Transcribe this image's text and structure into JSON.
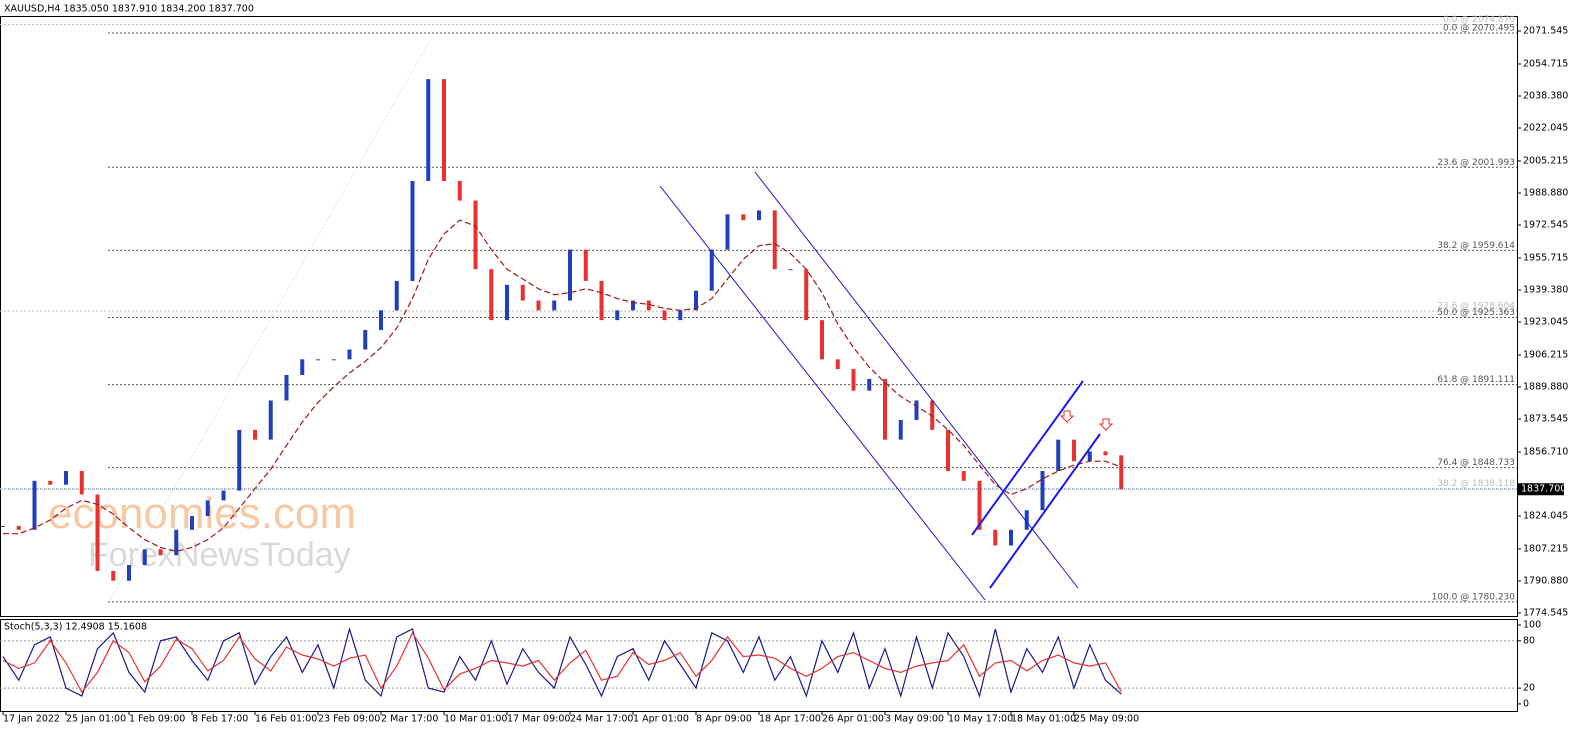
{
  "chart_data": [
    {
      "type": "line",
      "title": "XAUUSD,H4  1835.050 1837.910 1834.200 1837.700",
      "watermark": [
        "economies.com",
        "ForexNewsToday"
      ],
      "categories": [
        "17 Jan 2022",
        null,
        null,
        null,
        "25 Jan 01:00",
        null,
        null,
        null,
        "1 Feb 09:00",
        null,
        null,
        null,
        "8 Feb 17:00",
        null,
        null,
        null,
        "16 Feb 01:00",
        null,
        null,
        null,
        "23 Feb 09:00",
        null,
        null,
        null,
        "2 Mar 17:00",
        null,
        null,
        null,
        "10 Mar 01:00",
        null,
        null,
        null,
        "17 Mar 09:00",
        null,
        null,
        null,
        "24 Mar 17:00",
        null,
        null,
        null,
        "1 Apr 01:00",
        null,
        null,
        null,
        "8 Apr 09:00",
        null,
        null,
        null,
        "18 Apr 17:00",
        null,
        null,
        null,
        "26 Apr 01:00",
        null,
        null,
        null,
        "3 May 09:00",
        null,
        null,
        null,
        "10 May 17:00",
        null,
        null,
        null,
        "18 May 01:00",
        null,
        null,
        null,
        "25 May 09:00",
        null,
        null,
        null
      ],
      "series": [
        {
          "color": "#1f3fbf",
          "down_color": "#e8312f",
          "values": [
            1819,
            1817,
            1842,
            1840,
            1847,
            1835,
            1796,
            1791,
            1799,
            1807,
            1804,
            1817,
            1824,
            1832,
            1837,
            1868,
            1863,
            1883,
            1896,
            1904,
            1904,
            1904,
            1909,
            1919,
            1929,
            1944,
            1995,
            2047,
            1995,
            1985,
            1950,
            1924,
            1942,
            1934,
            1929,
            1934,
            1960,
            1944,
            1924,
            1929,
            1934,
            1929,
            1924,
            1929,
            1939,
            1960,
            1978,
            1975,
            1980,
            1950,
            1950,
            1924,
            1904,
            1899,
            1888,
            1894,
            1863,
            1873,
            1883,
            1868,
            1847,
            1842,
            1817,
            1809,
            1817,
            1827,
            1847,
            1863,
            1852,
            1857,
            1855,
            1837.7
          ]
        },
        {
          "color": "#a01818",
          "dashed": true,
          "values": [
            1815,
            1815,
            1818,
            1822,
            1828,
            1832,
            1830,
            1825,
            1818,
            1812,
            1808,
            1806,
            1808,
            1812,
            1818,
            1828,
            1838,
            1848,
            1860,
            1872,
            1882,
            1890,
            1897,
            1903,
            1910,
            1920,
            1935,
            1955,
            1968,
            1975,
            1972,
            1960,
            1950,
            1945,
            1940,
            1937,
            1938,
            1940,
            1938,
            1935,
            1933,
            1932,
            1930,
            1929,
            1930,
            1935,
            1945,
            1955,
            1962,
            1963,
            1958,
            1950,
            1938,
            1922,
            1910,
            1900,
            1892,
            1885,
            1880,
            1875,
            1868,
            1860,
            1850,
            1840,
            1835,
            1838,
            1843,
            1847,
            1850,
            1852,
            1852,
            1849
          ]
        }
      ],
      "ylim": [
        1772.5,
        2078.69
      ],
      "yticks": [
        2071.545,
        2054.715,
        {
          "value": 2038.38,
          "label": "2038.380"
        },
        2022.045,
        2005.215,
        {
          "value": 1988.88,
          "label": "1988.880"
        },
        1972.545,
        1955.715,
        {
          "value": 1939.38,
          "label": "1939.380"
        },
        1923.045,
        1906.215,
        {
          "value": 1889.88,
          "label": "1889.880"
        },
        1873.545,
        {
          "value": 1856.71,
          "label": "1856.710"
        },
        1824.045,
        1807.215,
        {
          "value": 1790.88,
          "label": "1790.880"
        },
        1774.545
      ],
      "current_price": {
        "value": 1837.7,
        "label": "1837.700"
      },
      "fib_levels": [
        {
          "label": "0.0 @ 2074.870",
          "value": 2074.87,
          "color": "#bbbbbb"
        },
        {
          "label": "0.0 @ 2070.495",
          "value": 2070.495,
          "color": "#555555"
        },
        {
          "label": "23.6 @ 2001.993",
          "value": 2001.993,
          "color": "#555555"
        },
        {
          "label": "38.2 @ 1959.614",
          "value": 1959.614,
          "color": "#555555"
        },
        {
          "label": "23.6 @ 1928.604",
          "value": 1928.604,
          "color": "#bbbbbb"
        },
        {
          "label": "50.0 @ 1925.363",
          "value": 1925.363,
          "color": "#555555"
        },
        {
          "label": "61.8 @ 1891.111",
          "value": 1891.111,
          "color": "#555555"
        },
        {
          "label": "76.4 @ 1848.733",
          "value": 1848.733,
          "color": "#555555"
        },
        {
          "label": "38.2 @ 1838.118",
          "value": 1838.118,
          "color": "#bbbbbb"
        },
        {
          "label": "100.0 @ 1780.230",
          "value": 1780.23,
          "color": "#555555"
        }
      ]
    },
    {
      "type": "line",
      "title": "Stoch(5,3,3) 12.4908 15.1608",
      "series": [
        {
          "color": "#1a1a8a",
          "values": [
            60,
            30,
            75,
            85,
            20,
            10,
            70,
            90,
            40,
            15,
            80,
            85,
            55,
            30,
            80,
            90,
            25,
            60,
            85,
            40,
            75,
            20,
            95,
            30,
            10,
            85,
            95,
            20,
            15,
            60,
            30,
            80,
            25,
            70,
            40,
            20,
            85,
            50,
            10,
            60,
            70,
            30,
            80,
            50,
            20,
            90,
            80,
            40,
            85,
            30,
            60,
            10,
            80,
            40,
            90,
            20,
            70,
            10,
            85,
            20,
            90,
            60,
            10,
            95,
            15,
            70,
            40,
            85,
            20,
            75,
            30,
            12.4908
          ]
        },
        {
          "color": "#e8312f",
          "values": [
            55,
            45,
            52,
            80,
            52,
            15,
            40,
            80,
            65,
            28,
            48,
            82,
            70,
            42,
            55,
            85,
            57,
            42,
            72,
            62,
            57,
            48,
            58,
            62,
            20,
            48,
            90,
            58,
            18,
            38,
            45,
            55,
            52,
            48,
            55,
            30,
            52,
            68,
            30,
            35,
            65,
            50,
            55,
            65,
            35,
            55,
            85,
            60,
            62,
            58,
            45,
            35,
            45,
            60,
            65,
            55,
            45,
            40,
            48,
            52,
            55,
            75,
            35,
            52,
            55,
            42,
            55,
            62,
            52,
            48,
            52,
            15.1608
          ]
        }
      ],
      "ylim": [
        -9,
        106.4
      ],
      "yticks": [
        0,
        20,
        80,
        100
      ]
    }
  ]
}
